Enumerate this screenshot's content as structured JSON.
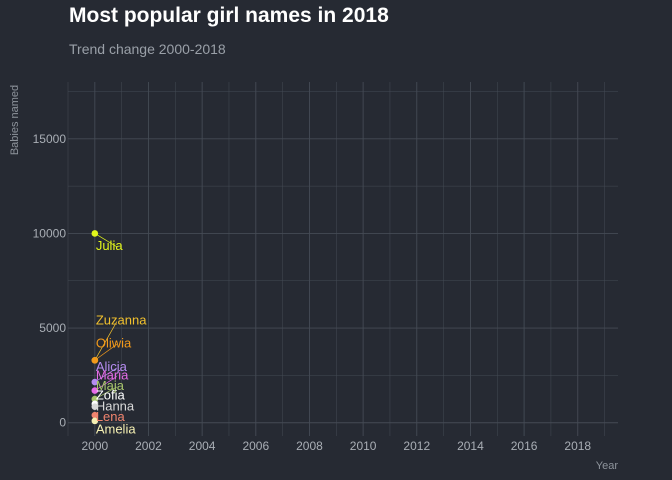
{
  "chart_data": {
    "type": "scatter",
    "title": "Most popular girl names in 2018",
    "subtitle": "Trend change 2000-2018",
    "xlabel": "Year",
    "ylabel": "Babies named",
    "xlim": [
      1999.0,
      2019.5
    ],
    "ylim": [
      -700,
      18000
    ],
    "x_ticks": [
      2000,
      2002,
      2004,
      2006,
      2008,
      2010,
      2012,
      2014,
      2016,
      2018
    ],
    "y_ticks": [
      0,
      5000,
      10000,
      15000
    ],
    "grid": true,
    "legend": "none",
    "points": [
      {
        "name": "Julia",
        "x": 2000,
        "y": 10000,
        "color": "#e1f51b",
        "label_y": 9400
      },
      {
        "name": "Zuzanna",
        "x": 2000,
        "y": 3300,
        "color": "#f2c12e",
        "label_y": 5450
      },
      {
        "name": "Oliwia",
        "x": 2000,
        "y": 3300,
        "color": "#f29a1b",
        "label_y": 4250
      },
      {
        "name": "Alicja",
        "x": 2000,
        "y": 2150,
        "color": "#b58cf0",
        "label_y": 3000
      },
      {
        "name": "Maria",
        "x": 2000,
        "y": 1700,
        "color": "#e66be8",
        "label_y": 2550
      },
      {
        "name": "Maja",
        "x": 2000,
        "y": 1250,
        "color": "#a7c46b",
        "label_y": 2000
      },
      {
        "name": "Zofia",
        "x": 2000,
        "y": 1000,
        "color": "#ffffff",
        "label_y": 1500
      },
      {
        "name": "Hanna",
        "x": 2000,
        "y": 850,
        "color": "#d9d9d9",
        "label_y": 900
      },
      {
        "name": "Lena",
        "x": 2000,
        "y": 400,
        "color": "#f0846e",
        "label_y": 350
      },
      {
        "name": "Amelia",
        "x": 2000,
        "y": 100,
        "color": "#f5f0b3",
        "label_y": -300
      }
    ]
  },
  "colors": {
    "background": "#262a33",
    "grid": "#454b55",
    "text": "#a9aeb5"
  }
}
